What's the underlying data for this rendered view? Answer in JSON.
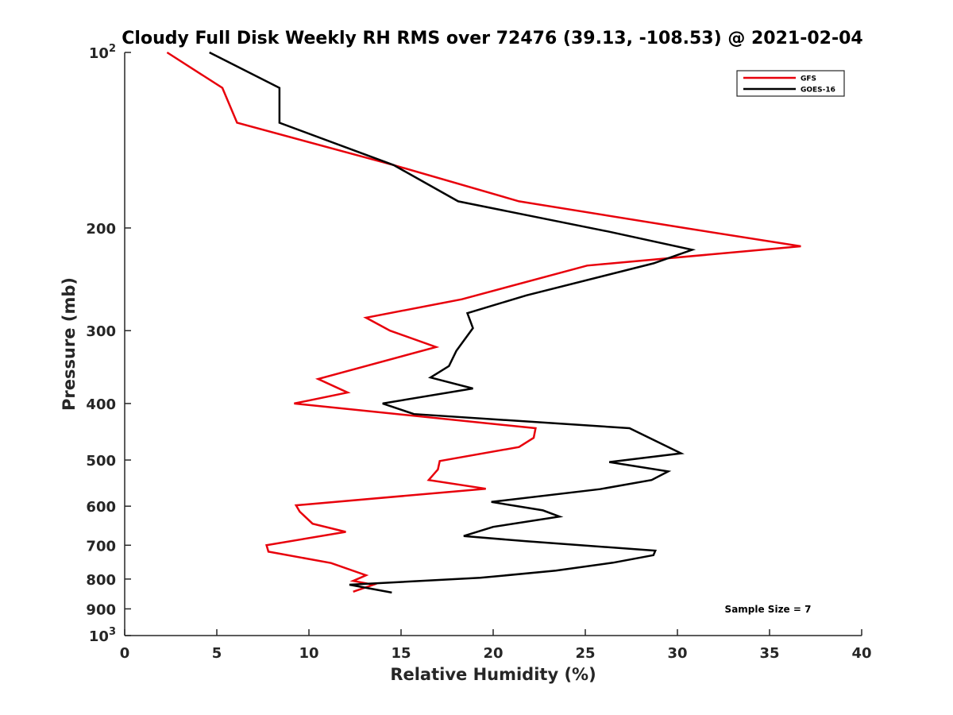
{
  "chart_data": {
    "type": "line",
    "title": "Cloudy Full Disk Weekly RH RMS over 72476 (39.13, -108.53) @ 2021-02-04",
    "xlabel": "Relative Humidity (%)",
    "ylabel": "Pressure (mb)",
    "xlim": [
      0,
      40
    ],
    "ylim": [
      100,
      1000
    ],
    "y_scale": "log",
    "y_reversed": true,
    "grid": false,
    "legend_position": "top-right",
    "x_ticks": [
      "0",
      "5",
      "10",
      "15",
      "20",
      "25",
      "30",
      "35",
      "40"
    ],
    "y_ticks": [
      {
        "value": 100,
        "base": "10",
        "exp": "2"
      },
      {
        "value": 200,
        "label": "200"
      },
      {
        "value": 300,
        "label": "300"
      },
      {
        "value": 400,
        "label": "400"
      },
      {
        "value": 500,
        "label": "500"
      },
      {
        "value": 600,
        "label": "600"
      },
      {
        "value": 700,
        "label": "700"
      },
      {
        "value": 800,
        "label": "800"
      },
      {
        "value": 900,
        "label": "900"
      },
      {
        "value": 1000,
        "base": "10",
        "exp": "3"
      }
    ],
    "series": [
      {
        "name": "GFS",
        "color": "#e8000b",
        "points": [
          [
            2.3,
            100
          ],
          [
            5.3,
            115
          ],
          [
            6.1,
            132
          ],
          [
            14.6,
            156
          ],
          [
            21.4,
            180
          ],
          [
            30.4,
            200
          ],
          [
            36.7,
            215
          ],
          [
            25.1,
            232
          ],
          [
            18.3,
            265
          ],
          [
            13.1,
            285
          ],
          [
            14.4,
            300
          ],
          [
            16.9,
            320
          ],
          [
            10.5,
            363
          ],
          [
            12.1,
            383
          ],
          [
            9.2,
            400
          ],
          [
            22.3,
            441
          ],
          [
            22.2,
            458
          ],
          [
            21.4,
            475
          ],
          [
            17.1,
            502
          ],
          [
            17.0,
            519
          ],
          [
            16.5,
            541
          ],
          [
            19.6,
            560
          ],
          [
            9.3,
            598
          ],
          [
            9.5,
            613
          ],
          [
            10.2,
            643
          ],
          [
            12.0,
            664
          ],
          [
            7.7,
            700
          ],
          [
            7.8,
            718
          ],
          [
            11.2,
            751
          ],
          [
            13.1,
            788
          ],
          [
            12.4,
            806
          ],
          [
            13.5,
            818
          ],
          [
            12.4,
            841
          ]
        ]
      },
      {
        "name": "GOES-16",
        "color": "#000000",
        "points": [
          [
            4.6,
            100
          ],
          [
            8.4,
            115
          ],
          [
            8.4,
            132
          ],
          [
            14.6,
            156
          ],
          [
            18.1,
            180
          ],
          [
            26.3,
            203
          ],
          [
            30.8,
            218
          ],
          [
            28.7,
            230
          ],
          [
            21.8,
            261
          ],
          [
            18.6,
            280
          ],
          [
            18.9,
            297
          ],
          [
            18.0,
            325
          ],
          [
            17.6,
            345
          ],
          [
            16.6,
            361
          ],
          [
            18.9,
            377
          ],
          [
            14.0,
            400
          ],
          [
            15.7,
            417
          ],
          [
            27.4,
            441
          ],
          [
            30.2,
            487
          ],
          [
            26.3,
            504
          ],
          [
            29.5,
            523
          ],
          [
            28.6,
            541
          ],
          [
            25.8,
            561
          ],
          [
            19.9,
            590
          ],
          [
            22.7,
            610
          ],
          [
            23.6,
            625
          ],
          [
            20.0,
            651
          ],
          [
            18.4,
            675
          ],
          [
            21.8,
            689
          ],
          [
            28.8,
            715
          ],
          [
            28.7,
            728
          ],
          [
            26.5,
            750
          ],
          [
            23.4,
            774
          ],
          [
            19.3,
            796
          ],
          [
            12.2,
            818
          ],
          [
            14.5,
            844
          ]
        ]
      }
    ],
    "annotation": "Sample Size = 7"
  }
}
